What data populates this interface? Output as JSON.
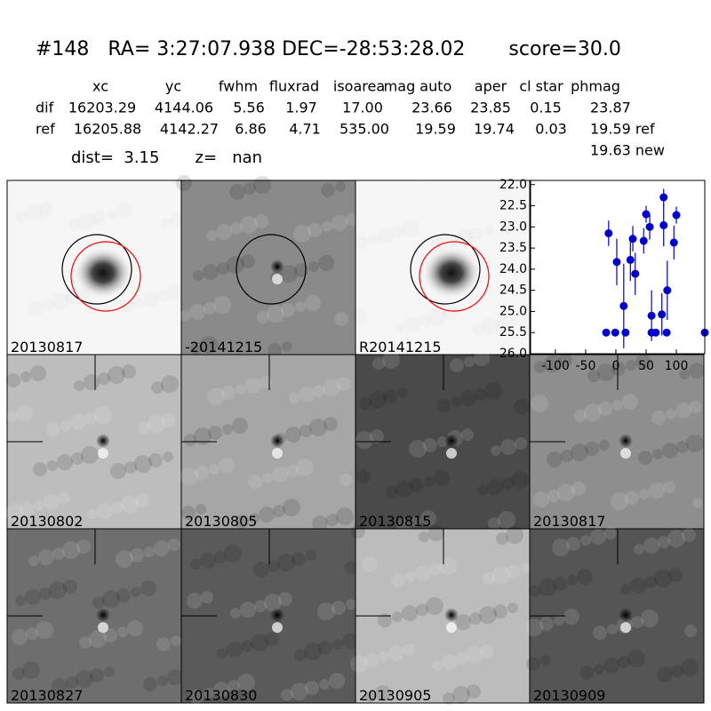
{
  "header": {
    "title": "#148   RA= 3:27:07.938 DEC=-28:53:28.02       score=30.0"
  },
  "table": {
    "columns": [
      "xc",
      "yc",
      "fwhm",
      "fluxrad",
      "isoarea",
      "mag auto",
      "aper",
      "cl star",
      "phmag"
    ],
    "rows": [
      {
        "name": "dif",
        "cells": [
          "16203.29",
          "4144.06",
          "5.56",
          "1.97",
          "17.00",
          "23.66",
          "23.85",
          "0.15",
          "23.87"
        ]
      },
      {
        "name": "ref",
        "cells": [
          "16205.88",
          "4142.27",
          "6.86",
          "4.71",
          "535.00",
          "19.59",
          "19.74",
          "0.03",
          "19.59 ref"
        ]
      }
    ],
    "extra": "19.63 new"
  },
  "dist": "dist=  3.15       z=   nan",
  "panels": [
    {
      "label": "20130817",
      "label_color": "#000000"
    },
    {
      "label": "-20141215",
      "label_color": "#000000"
    },
    {
      "label": "R20141215",
      "label_color": "#000000"
    },
    {
      "label": "20130802",
      "label_color": "#000000"
    },
    {
      "label": "20130805",
      "label_color": "#000000"
    },
    {
      "label": "20130815",
      "label_color": "#000000"
    },
    {
      "label": "20130817",
      "label_color": "#ff0000"
    },
    {
      "label": "20130827",
      "label_color": "#000000"
    },
    {
      "label": "20130830",
      "label_color": "#000000"
    },
    {
      "label": "20130905",
      "label_color": "#000000"
    },
    {
      "label": "20130909",
      "label_color": "#000000"
    }
  ],
  "chart_data": {
    "type": "errorbar",
    "xlim": [
      -141,
      147
    ],
    "ylim": [
      26,
      21.9
    ],
    "xticks": [
      -100,
      -50,
      0,
      50,
      100
    ],
    "yticks": [
      {
        "value": 22,
        "label": "22.0"
      },
      22.5,
      {
        "value": 23,
        "label": "23.0"
      },
      23.5,
      {
        "value": 24,
        "label": "24.0"
      },
      24.5,
      {
        "value": 25,
        "label": "25.0"
      },
      25.5,
      {
        "value": 26,
        "label": "26.0"
      }
    ],
    "series": [
      {
        "color": "#0000cc",
        "x": [
          -16,
          -12,
          -1,
          1.5,
          13,
          16,
          24,
          28,
          32,
          46,
          50,
          56,
          59,
          59,
          66,
          76,
          79,
          79,
          84,
          85,
          96,
          100,
          147
        ],
        "values": [
          25.5,
          23.15,
          25.5,
          23.83,
          24.87,
          25.5,
          23.78,
          23.28,
          24.11,
          23.33,
          22.7,
          23.0,
          25.1,
          25.5,
          25.5,
          25.07,
          22.3,
          22.96,
          25.5,
          24.5,
          23.37,
          22.72,
          25.5
        ],
        "errors": [
          0.05,
          0.3,
          0.05,
          0.55,
          1.0,
          0.05,
          0.5,
          0.3,
          0.5,
          0.3,
          0.2,
          0.3,
          0.6,
          0.05,
          0.05,
          0.5,
          0.2,
          0.5,
          0.05,
          0.7,
          0.4,
          0.2,
          0.05
        ]
      }
    ]
  }
}
